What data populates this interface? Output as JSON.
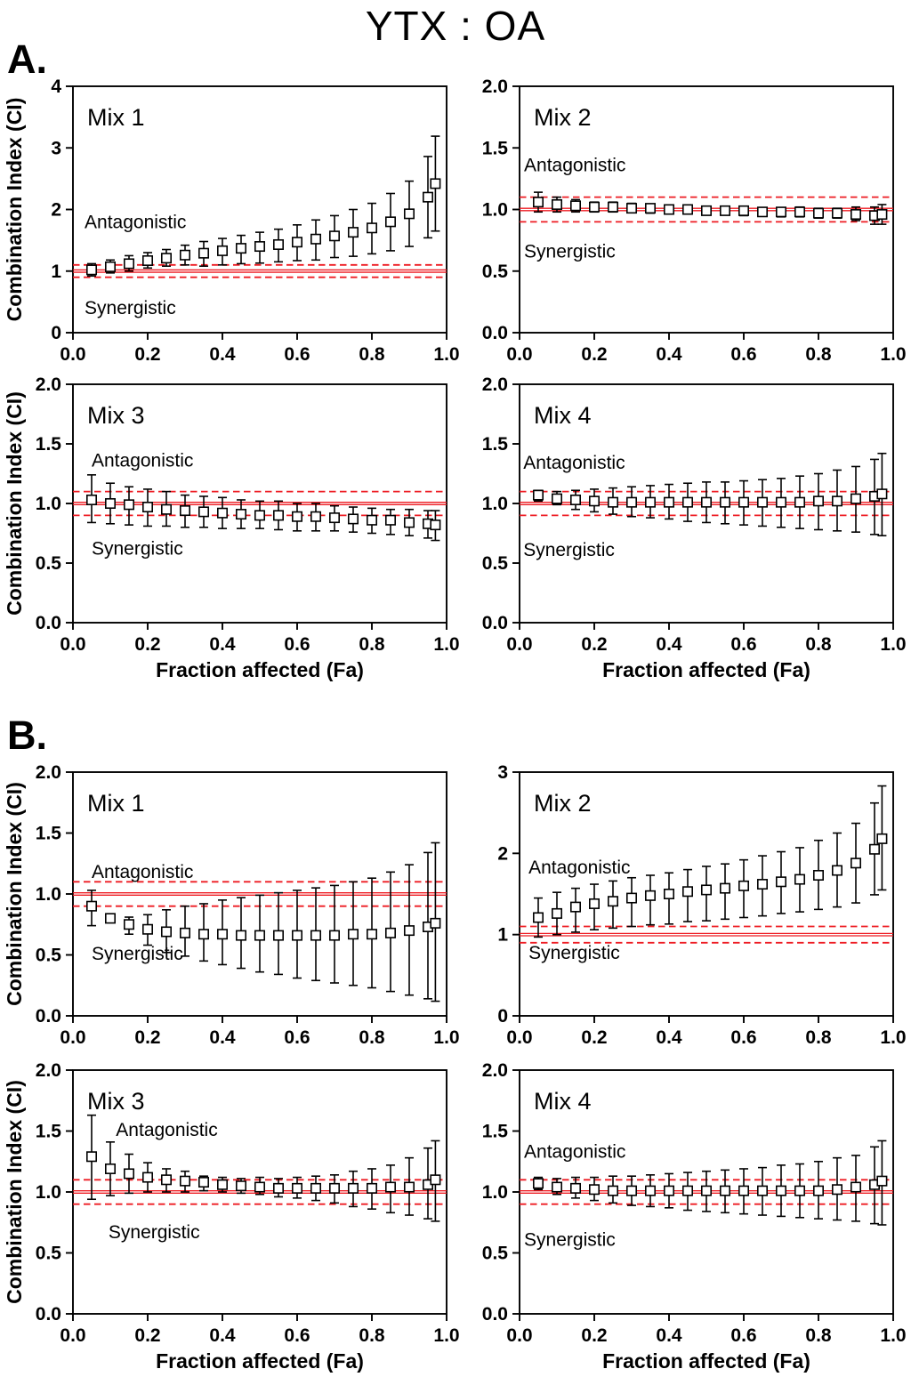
{
  "figure": {
    "title": "YTX : OA"
  },
  "panels": [
    {
      "label": "A."
    },
    {
      "label": "B."
    }
  ],
  "colors": {
    "reference_line": "#ee1c23",
    "marker_stroke": "#000000",
    "marker_fill": "#ffffff",
    "axis": "#000000",
    "background": "#ffffff"
  },
  "chart_data": [
    {
      "type": "scatter",
      "panel": "A",
      "label": "Mix 1",
      "xlabel": "",
      "ylabel": "Combination Index (CI)",
      "xlim": [
        0.0,
        1.0
      ],
      "ylim": [
        0,
        4
      ],
      "xticks": [
        0.0,
        0.2,
        0.4,
        0.6,
        0.8,
        1.0
      ],
      "xtick_labels": [
        "0.0",
        "0.2",
        "0.4",
        "0.6",
        "0.8",
        "1.0"
      ],
      "yticks": [
        0,
        1,
        2,
        3,
        4
      ],
      "ytick_labels": [
        "0",
        "1",
        "2",
        "3",
        "4"
      ],
      "reference_lines": {
        "solid": 1.0,
        "dashed": [
          0.9,
          1.1
        ]
      },
      "annotations": [
        {
          "text": "Antagonistic",
          "x": 0.031,
          "y": 1.7
        },
        {
          "text": "Synergistic",
          "x": 0.031,
          "y": 0.3
        }
      ],
      "x": [
        0.05,
        0.1,
        0.15,
        0.2,
        0.25,
        0.3,
        0.35,
        0.4,
        0.45,
        0.5,
        0.55,
        0.6,
        0.65,
        0.7,
        0.75,
        0.8,
        0.85,
        0.9,
        0.95,
        0.97
      ],
      "y": [
        1.02,
        1.07,
        1.12,
        1.17,
        1.21,
        1.26,
        1.29,
        1.33,
        1.37,
        1.4,
        1.43,
        1.47,
        1.52,
        1.57,
        1.63,
        1.7,
        1.8,
        1.93,
        2.2,
        2.42
      ],
      "y_lo": [
        0.92,
        0.97,
        1.0,
        1.05,
        1.08,
        1.1,
        1.08,
        1.1,
        1.12,
        1.13,
        1.15,
        1.17,
        1.18,
        1.22,
        1.24,
        1.28,
        1.33,
        1.4,
        1.54,
        1.65
      ],
      "y_hi": [
        1.12,
        1.18,
        1.25,
        1.3,
        1.35,
        1.42,
        1.48,
        1.53,
        1.58,
        1.63,
        1.68,
        1.75,
        1.83,
        1.9,
        2.0,
        2.1,
        2.26,
        2.46,
        2.86,
        3.19
      ]
    },
    {
      "type": "scatter",
      "panel": "A",
      "label": "Mix 2",
      "xlabel": "",
      "ylabel": "",
      "xlim": [
        0.0,
        1.0
      ],
      "ylim": [
        0.0,
        2.0
      ],
      "xticks": [
        0.0,
        0.2,
        0.4,
        0.6,
        0.8,
        1.0
      ],
      "xtick_labels": [
        "0.0",
        "0.2",
        "0.4",
        "0.6",
        "0.8",
        "1.0"
      ],
      "yticks": [
        0.0,
        0.5,
        1.0,
        1.5,
        2.0
      ],
      "ytick_labels": [
        "0.0",
        "0.5",
        "1.0",
        "1.5",
        "2.0"
      ],
      "reference_lines": {
        "solid": 1.0,
        "dashed": [
          0.9,
          1.1
        ]
      },
      "annotations": [
        {
          "text": "Antagonistic",
          "x": 0.012,
          "y": 1.31
        },
        {
          "text": "Synergistic",
          "x": 0.012,
          "y": 0.61
        }
      ],
      "x": [
        0.05,
        0.1,
        0.15,
        0.2,
        0.25,
        0.3,
        0.35,
        0.4,
        0.45,
        0.5,
        0.55,
        0.6,
        0.65,
        0.7,
        0.75,
        0.8,
        0.85,
        0.9,
        0.95,
        0.97
      ],
      "y": [
        1.06,
        1.04,
        1.03,
        1.02,
        1.02,
        1.01,
        1.01,
        1.0,
        1.0,
        0.99,
        0.99,
        0.99,
        0.98,
        0.98,
        0.98,
        0.97,
        0.97,
        0.96,
        0.95,
        0.96
      ],
      "y_lo": [
        0.98,
        0.98,
        0.98,
        0.98,
        0.98,
        0.98,
        0.97,
        0.97,
        0.97,
        0.96,
        0.96,
        0.95,
        0.95,
        0.94,
        0.94,
        0.93,
        0.93,
        0.91,
        0.88,
        0.88
      ],
      "y_hi": [
        1.14,
        1.1,
        1.08,
        1.06,
        1.06,
        1.05,
        1.04,
        1.03,
        1.03,
        1.02,
        1.02,
        1.02,
        1.01,
        1.01,
        1.02,
        1.01,
        1.01,
        1.02,
        1.02,
        1.04
      ]
    },
    {
      "type": "scatter",
      "panel": "A",
      "label": "Mix 3",
      "xlabel": "Fraction affected (Fa)",
      "ylabel": "Combination Index (CI)",
      "xlim": [
        0.0,
        1.0
      ],
      "ylim": [
        0.0,
        2.0
      ],
      "xticks": [
        0.0,
        0.2,
        0.4,
        0.6,
        0.8,
        1.0
      ],
      "xtick_labels": [
        "0.0",
        "0.2",
        "0.4",
        "0.6",
        "0.8",
        "1.0"
      ],
      "yticks": [
        0.0,
        0.5,
        1.0,
        1.5,
        2.0
      ],
      "ytick_labels": [
        "0.0",
        "0.5",
        "1.0",
        "1.5",
        "2.0"
      ],
      "reference_lines": {
        "solid": 1.0,
        "dashed": [
          0.9,
          1.1
        ]
      },
      "annotations": [
        {
          "text": "Antagonistic",
          "x": 0.05,
          "y": 1.31
        },
        {
          "text": "Synergistic",
          "x": 0.05,
          "y": 0.57
        }
      ],
      "x": [
        0.05,
        0.1,
        0.15,
        0.2,
        0.25,
        0.3,
        0.35,
        0.4,
        0.45,
        0.5,
        0.55,
        0.6,
        0.65,
        0.7,
        0.75,
        0.8,
        0.85,
        0.9,
        0.95,
        0.97
      ],
      "y": [
        1.03,
        1.0,
        0.99,
        0.97,
        0.95,
        0.94,
        0.93,
        0.92,
        0.91,
        0.9,
        0.9,
        0.89,
        0.89,
        0.88,
        0.87,
        0.86,
        0.86,
        0.84,
        0.83,
        0.82
      ],
      "y_lo": [
        0.84,
        0.83,
        0.82,
        0.81,
        0.81,
        0.8,
        0.8,
        0.79,
        0.79,
        0.79,
        0.78,
        0.77,
        0.77,
        0.77,
        0.76,
        0.75,
        0.74,
        0.73,
        0.71,
        0.69
      ],
      "y_hi": [
        1.24,
        1.17,
        1.14,
        1.12,
        1.1,
        1.07,
        1.06,
        1.05,
        1.03,
        1.02,
        1.02,
        1.0,
        1.0,
        0.98,
        0.97,
        0.96,
        0.95,
        0.95,
        0.94,
        0.94
      ]
    },
    {
      "type": "scatter",
      "panel": "A",
      "label": "Mix 4",
      "xlabel": "Fraction affected (Fa)",
      "ylabel": "",
      "xlim": [
        0.0,
        1.0
      ],
      "ylim": [
        0.0,
        2.0
      ],
      "xticks": [
        0.0,
        0.2,
        0.4,
        0.6,
        0.8,
        1.0
      ],
      "xtick_labels": [
        "0.0",
        "0.2",
        "0.4",
        "0.6",
        "0.8",
        "1.0"
      ],
      "yticks": [
        0.0,
        0.5,
        1.0,
        1.5,
        2.0
      ],
      "ytick_labels": [
        "0.0",
        "0.5",
        "1.0",
        "1.5",
        "2.0"
      ],
      "reference_lines": {
        "solid": 1.0,
        "dashed": [
          0.9,
          1.1
        ]
      },
      "annotations": [
        {
          "text": "Antagonistic",
          "x": 0.01,
          "y": 1.29
        },
        {
          "text": "Synergistic",
          "x": 0.01,
          "y": 0.56
        }
      ],
      "x": [
        0.05,
        0.1,
        0.15,
        0.2,
        0.25,
        0.3,
        0.35,
        0.4,
        0.45,
        0.5,
        0.55,
        0.6,
        0.65,
        0.7,
        0.75,
        0.8,
        0.85,
        0.9,
        0.95,
        0.97
      ],
      "y": [
        1.07,
        1.04,
        1.03,
        1.02,
        1.01,
        1.01,
        1.01,
        1.01,
        1.01,
        1.01,
        1.01,
        1.01,
        1.01,
        1.01,
        1.01,
        1.02,
        1.02,
        1.04,
        1.06,
        1.08
      ],
      "y_lo": [
        1.02,
        0.99,
        0.95,
        0.93,
        0.91,
        0.89,
        0.88,
        0.87,
        0.85,
        0.84,
        0.83,
        0.82,
        0.81,
        0.8,
        0.79,
        0.78,
        0.77,
        0.76,
        0.74,
        0.73
      ],
      "y_hi": [
        1.11,
        1.1,
        1.11,
        1.12,
        1.13,
        1.14,
        1.15,
        1.16,
        1.17,
        1.18,
        1.18,
        1.19,
        1.2,
        1.21,
        1.23,
        1.25,
        1.28,
        1.31,
        1.37,
        1.42
      ]
    },
    {
      "type": "scatter",
      "panel": "B",
      "label": "Mix 1",
      "xlabel": "",
      "ylabel": "Combination Index (CI)",
      "xlim": [
        0.0,
        1.0
      ],
      "ylim": [
        0.0,
        2.0
      ],
      "xticks": [
        0.0,
        0.2,
        0.4,
        0.6,
        0.8,
        1.0
      ],
      "xtick_labels": [
        "0.0",
        "0.2",
        "0.4",
        "0.6",
        "0.8",
        "1.0"
      ],
      "yticks": [
        0.0,
        0.5,
        1.0,
        1.5,
        2.0
      ],
      "ytick_labels": [
        "0.0",
        "0.5",
        "1.0",
        "1.5",
        "2.0"
      ],
      "reference_lines": {
        "solid": 1.0,
        "dashed": [
          0.9,
          1.1
        ]
      },
      "annotations": [
        {
          "text": "Antagonistic",
          "x": 0.05,
          "y": 1.13
        },
        {
          "text": "Synergistic",
          "x": 0.05,
          "y": 0.46
        }
      ],
      "x": [
        0.05,
        0.1,
        0.15,
        0.2,
        0.25,
        0.3,
        0.35,
        0.4,
        0.45,
        0.5,
        0.55,
        0.6,
        0.65,
        0.7,
        0.75,
        0.8,
        0.85,
        0.9,
        0.95,
        0.97
      ],
      "y": [
        0.9,
        0.8,
        0.75,
        0.71,
        0.69,
        0.68,
        0.67,
        0.67,
        0.66,
        0.66,
        0.66,
        0.66,
        0.66,
        0.66,
        0.67,
        0.67,
        0.68,
        0.7,
        0.73,
        0.76
      ],
      "y_lo": [
        0.74,
        0.78,
        0.67,
        0.58,
        0.52,
        0.49,
        0.45,
        0.42,
        0.39,
        0.36,
        0.34,
        0.31,
        0.29,
        0.27,
        0.25,
        0.23,
        0.2,
        0.17,
        0.14,
        0.12
      ],
      "y_hi": [
        1.03,
        0.82,
        0.81,
        0.83,
        0.87,
        0.9,
        0.92,
        0.95,
        0.97,
        0.99,
        1.01,
        1.03,
        1.05,
        1.07,
        1.1,
        1.13,
        1.18,
        1.24,
        1.34,
        1.42
      ]
    },
    {
      "type": "scatter",
      "panel": "B",
      "label": "Mix 2",
      "xlabel": "",
      "ylabel": "",
      "xlim": [
        0.0,
        1.0
      ],
      "ylim": [
        0,
        3
      ],
      "xticks": [
        0.0,
        0.2,
        0.4,
        0.6,
        0.8,
        1.0
      ],
      "xtick_labels": [
        "0.0",
        "0.2",
        "0.4",
        "0.6",
        "0.8",
        "1.0"
      ],
      "yticks": [
        0,
        1,
        2,
        3
      ],
      "ytick_labels": [
        "0",
        "1",
        "2",
        "3"
      ],
      "reference_lines": {
        "solid": 1.0,
        "dashed": [
          0.9,
          1.1
        ]
      },
      "annotations": [
        {
          "text": "Antagonistic",
          "x": 0.024,
          "y": 1.75
        },
        {
          "text": "Synergistic",
          "x": 0.024,
          "y": 0.7
        }
      ],
      "x": [
        0.05,
        0.1,
        0.15,
        0.2,
        0.25,
        0.3,
        0.35,
        0.4,
        0.45,
        0.5,
        0.55,
        0.6,
        0.65,
        0.7,
        0.75,
        0.8,
        0.85,
        0.9,
        0.95,
        0.97
      ],
      "y": [
        1.21,
        1.26,
        1.34,
        1.38,
        1.41,
        1.45,
        1.48,
        1.5,
        1.53,
        1.55,
        1.57,
        1.6,
        1.62,
        1.65,
        1.68,
        1.73,
        1.79,
        1.88,
        2.05,
        2.18
      ],
      "y_lo": [
        0.97,
        1.0,
        1.03,
        1.06,
        1.08,
        1.1,
        1.12,
        1.13,
        1.16,
        1.17,
        1.19,
        1.21,
        1.23,
        1.26,
        1.28,
        1.31,
        1.34,
        1.39,
        1.49,
        1.55
      ],
      "y_hi": [
        1.45,
        1.52,
        1.57,
        1.62,
        1.66,
        1.7,
        1.73,
        1.76,
        1.8,
        1.84,
        1.87,
        1.92,
        1.97,
        2.02,
        2.07,
        2.16,
        2.25,
        2.37,
        2.62,
        2.83
      ]
    },
    {
      "type": "scatter",
      "panel": "B",
      "label": "Mix 3",
      "xlabel": "Fraction affected (Fa)",
      "ylabel": "Combination Index (CI)",
      "xlim": [
        0.0,
        1.0
      ],
      "ylim": [
        0.0,
        2.0
      ],
      "xticks": [
        0.0,
        0.2,
        0.4,
        0.6,
        0.8,
        1.0
      ],
      "xtick_labels": [
        "0.0",
        "0.2",
        "0.4",
        "0.6",
        "0.8",
        "1.0"
      ],
      "yticks": [
        0.0,
        0.5,
        1.0,
        1.5,
        2.0
      ],
      "ytick_labels": [
        "0.0",
        "0.5",
        "1.0",
        "1.5",
        "2.0"
      ],
      "reference_lines": {
        "solid": 1.0,
        "dashed": [
          0.9,
          1.1
        ]
      },
      "annotations": [
        {
          "text": "Antagonistic",
          "x": 0.115,
          "y": 1.46
        },
        {
          "text": "Synergistic",
          "x": 0.095,
          "y": 0.62
        }
      ],
      "x": [
        0.05,
        0.1,
        0.15,
        0.2,
        0.25,
        0.3,
        0.35,
        0.4,
        0.45,
        0.5,
        0.55,
        0.6,
        0.65,
        0.7,
        0.75,
        0.8,
        0.85,
        0.9,
        0.95,
        0.97
      ],
      "y": [
        1.29,
        1.19,
        1.15,
        1.12,
        1.1,
        1.09,
        1.08,
        1.06,
        1.05,
        1.04,
        1.03,
        1.03,
        1.03,
        1.03,
        1.03,
        1.03,
        1.04,
        1.04,
        1.06,
        1.1
      ],
      "y_lo": [
        0.94,
        0.97,
        0.99,
        1.0,
        1.0,
        1.0,
        1.01,
        1.0,
        0.99,
        0.98,
        0.96,
        0.95,
        0.93,
        0.91,
        0.88,
        0.86,
        0.83,
        0.81,
        0.78,
        0.76
      ],
      "y_hi": [
        1.63,
        1.41,
        1.31,
        1.24,
        1.19,
        1.17,
        1.13,
        1.12,
        1.11,
        1.12,
        1.11,
        1.12,
        1.13,
        1.14,
        1.17,
        1.19,
        1.22,
        1.28,
        1.36,
        1.42
      ]
    },
    {
      "type": "scatter",
      "panel": "B",
      "label": "Mix 4",
      "xlabel": "Fraction affected (Fa)",
      "ylabel": "",
      "xlim": [
        0.0,
        1.0
      ],
      "ylim": [
        0.0,
        2.0
      ],
      "xticks": [
        0.0,
        0.2,
        0.4,
        0.6,
        0.8,
        1.0
      ],
      "xtick_labels": [
        "0.0",
        "0.2",
        "0.4",
        "0.6",
        "0.8",
        "1.0"
      ],
      "yticks": [
        0.0,
        0.5,
        1.0,
        1.5,
        2.0
      ],
      "ytick_labels": [
        "0.0",
        "0.5",
        "1.0",
        "1.5",
        "2.0"
      ],
      "reference_lines": {
        "solid": 1.0,
        "dashed": [
          0.9,
          1.1
        ]
      },
      "annotations": [
        {
          "text": "Antagonistic",
          "x": 0.012,
          "y": 1.28
        },
        {
          "text": "Synergistic",
          "x": 0.012,
          "y": 0.56
        }
      ],
      "x": [
        0.05,
        0.1,
        0.15,
        0.2,
        0.25,
        0.3,
        0.35,
        0.4,
        0.45,
        0.5,
        0.55,
        0.6,
        0.65,
        0.7,
        0.75,
        0.8,
        0.85,
        0.9,
        0.95,
        0.97
      ],
      "y": [
        1.07,
        1.04,
        1.03,
        1.02,
        1.01,
        1.01,
        1.01,
        1.01,
        1.01,
        1.01,
        1.01,
        1.01,
        1.01,
        1.01,
        1.01,
        1.01,
        1.02,
        1.04,
        1.06,
        1.09
      ],
      "y_lo": [
        1.02,
        0.98,
        0.95,
        0.93,
        0.91,
        0.89,
        0.88,
        0.87,
        0.85,
        0.84,
        0.83,
        0.82,
        0.81,
        0.8,
        0.79,
        0.78,
        0.77,
        0.76,
        0.74,
        0.73
      ],
      "y_hi": [
        1.12,
        1.11,
        1.12,
        1.12,
        1.13,
        1.13,
        1.14,
        1.15,
        1.16,
        1.17,
        1.18,
        1.19,
        1.2,
        1.22,
        1.23,
        1.25,
        1.28,
        1.3,
        1.37,
        1.42
      ]
    }
  ]
}
